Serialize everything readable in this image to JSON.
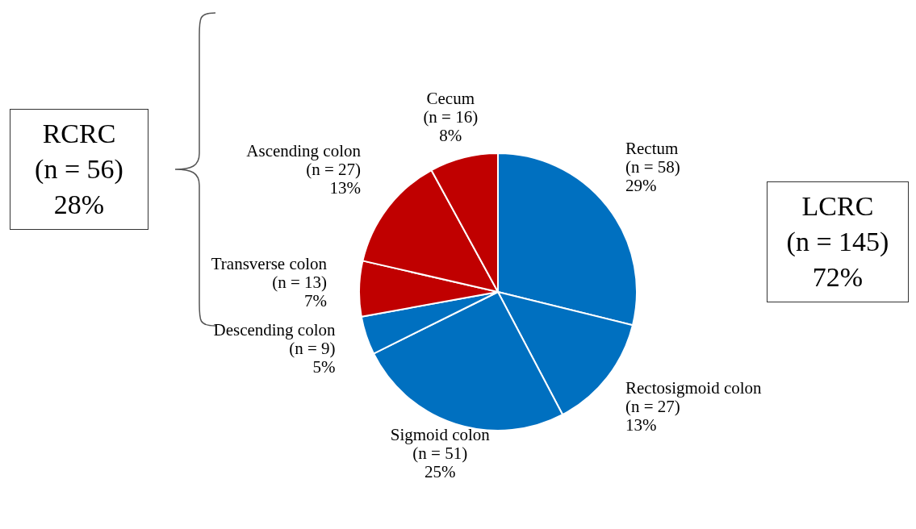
{
  "chart_data": {
    "type": "pie",
    "categories": [
      "Rectum",
      "Rectosigmoid colon",
      "Sigmoid colon",
      "Descending colon",
      "Transverse colon",
      "Ascending colon",
      "Cecum"
    ],
    "values": [
      58,
      27,
      51,
      9,
      13,
      27,
      16
    ],
    "value_labels": [
      "(n = 58)\n29%",
      "(n = 27)\n13%",
      "(n = 51)\n25%",
      "(n = 9)\n5%",
      "(n = 13)\n7%",
      "(n = 27)\n13%",
      "(n = 16)\n8%"
    ],
    "colors": [
      "#0070c0",
      "#0070c0",
      "#0070c0",
      "#0070c0",
      "#c00000",
      "#c00000",
      "#c00000"
    ],
    "annotations": [
      "RCRC\n(n = 56)\n28%",
      "LCRC\n(n = 145)\n72%"
    ]
  }
}
